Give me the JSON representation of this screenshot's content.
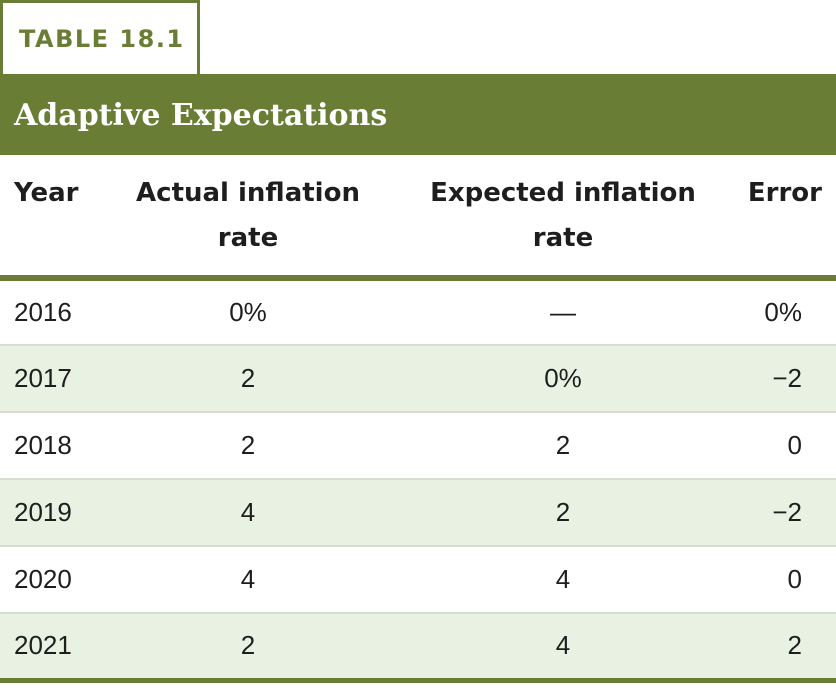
{
  "table_label": "TABLE 18.1",
  "title": "Adaptive Expectations",
  "headers": {
    "year": "Year",
    "actual_line1": "Actual inflation",
    "actual_line2": "rate",
    "expected_line1": "Expected inflation",
    "expected_line2": "rate",
    "error": "Error"
  },
  "rows": [
    {
      "year": "2016",
      "actual": "0%",
      "expected": "—",
      "error": "0%"
    },
    {
      "year": "2017",
      "actual": "2",
      "expected": "0%",
      "error": "−2"
    },
    {
      "year": "2018",
      "actual": "2",
      "expected": "2",
      "error": "0"
    },
    {
      "year": "2019",
      "actual": "4",
      "expected": "2",
      "error": "−2"
    },
    {
      "year": "2020",
      "actual": "4",
      "expected": "4",
      "error": "0"
    },
    {
      "year": "2021",
      "actual": "2",
      "expected": "4",
      "error": "2"
    }
  ],
  "colors": {
    "accent": "#6a7d35",
    "row_shade": "#e8f1e2"
  }
}
